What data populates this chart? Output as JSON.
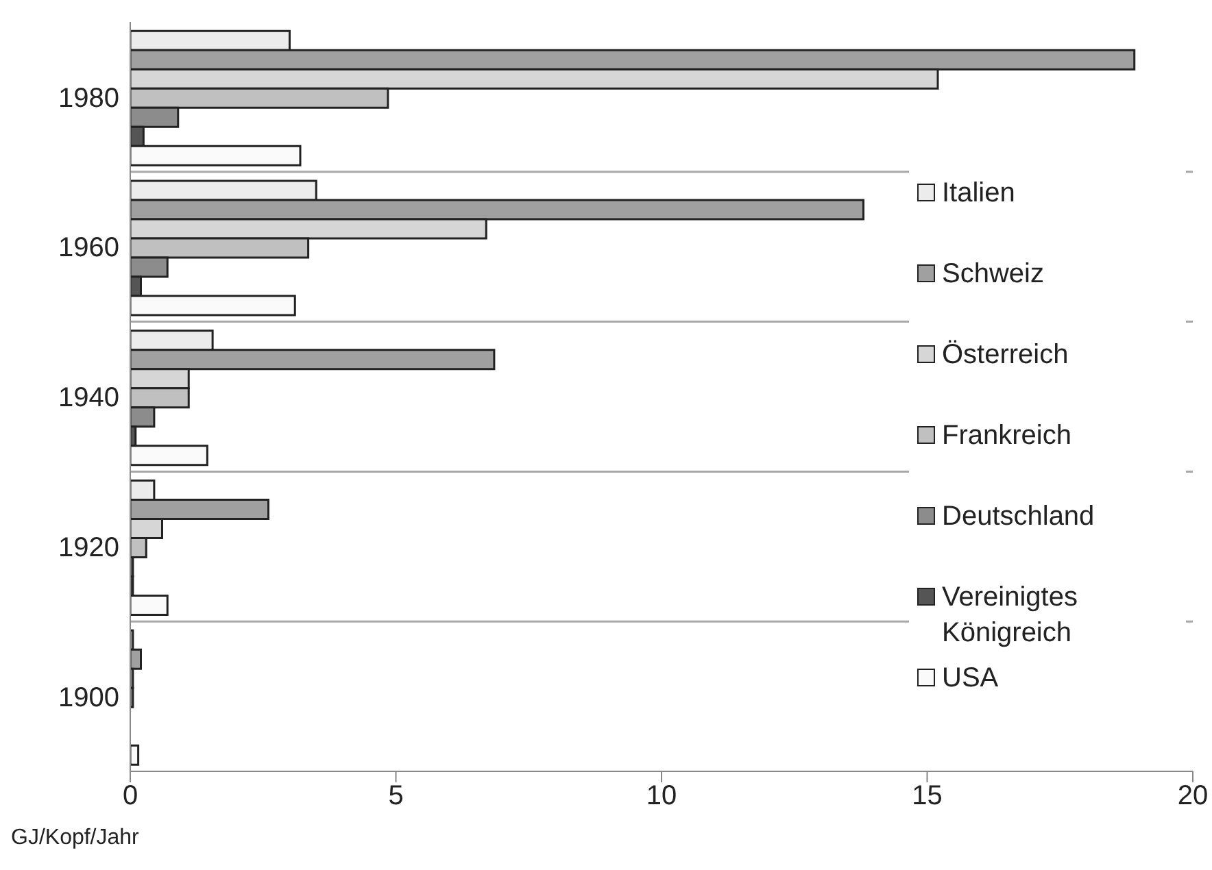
{
  "chart_data": {
    "type": "bar",
    "orientation": "horizontal",
    "xlabel": "GJ/Kopf/Jahr",
    "categories": [
      "1980",
      "1960",
      "1940",
      "1920",
      "1900"
    ],
    "series": [
      {
        "name": "Italien",
        "color": "#ececec",
        "values": [
          3.0,
          3.5,
          1.55,
          0.45,
          0.05
        ]
      },
      {
        "name": "Schweiz",
        "color": "#a0a0a0",
        "values": [
          18.9,
          13.8,
          6.85,
          2.6,
          0.2
        ]
      },
      {
        "name": "Österreich",
        "color": "#d6d6d6",
        "values": [
          15.2,
          6.7,
          1.1,
          0.6,
          0.05
        ]
      },
      {
        "name": "Frankreich",
        "color": "#c0c0c0",
        "values": [
          4.85,
          3.35,
          1.1,
          0.3,
          0.05
        ]
      },
      {
        "name": "Deutschland",
        "color": "#8c8c8c",
        "values": [
          0.9,
          0.7,
          0.45,
          0.05,
          null
        ]
      },
      {
        "name": "Vereinigtes Königreich",
        "color": "#555555",
        "values": [
          0.25,
          0.2,
          0.1,
          0.05,
          null
        ]
      },
      {
        "name": "USA",
        "color": "#fafafa",
        "values": [
          3.2,
          3.1,
          1.45,
          0.7,
          0.15
        ]
      }
    ],
    "xlim": [
      0,
      20
    ],
    "xticks": [
      0,
      5,
      10,
      15,
      20
    ],
    "grid": "y",
    "legend": "right"
  }
}
